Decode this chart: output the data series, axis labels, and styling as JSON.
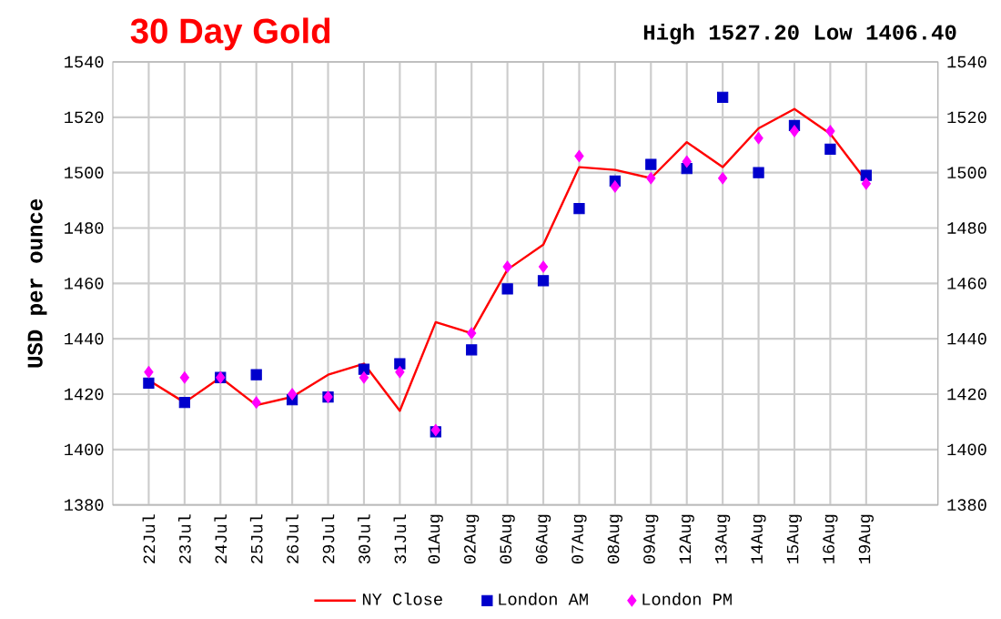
{
  "chart_data": {
    "type": "line",
    "title": "30 Day Gold",
    "subtitle": "High 1527.20 Low 1406.40",
    "ylabel": "USD per ounce",
    "categories": [
      "22Jul",
      "23Jul",
      "24Jul",
      "25Jul",
      "26Jul",
      "29Jul",
      "30Jul",
      "31Jul",
      "01Aug",
      "02Aug",
      "05Aug",
      "06Aug",
      "07Aug",
      "08Aug",
      "09Aug",
      "12Aug",
      "13Aug",
      "14Aug",
      "15Aug",
      "16Aug",
      "19Aug"
    ],
    "series": [
      {
        "name": "NY Close",
        "marker": "none",
        "color": "#ff0000",
        "values": [
          1425,
          1417,
          1426,
          1416,
          1419,
          1427,
          1431,
          1414,
          1446,
          1442,
          1465,
          1474,
          1502,
          1501,
          1498,
          1511,
          1502,
          1516,
          1523,
          1514,
          1497
        ]
      },
      {
        "name": "London AM",
        "type": "scatter",
        "marker": "square",
        "color": "#0000cc",
        "values": [
          1424,
          1417,
          1426,
          1427,
          1418,
          1419,
          1429,
          1431,
          1406.4,
          1436,
          1458,
          1461,
          1487,
          1497,
          1503,
          1501.5,
          1527.2,
          1500,
          1517,
          1508.5,
          1499
        ]
      },
      {
        "name": "London PM",
        "type": "scatter",
        "marker": "diamond",
        "color": "#ff00ff",
        "values": [
          1428,
          1426,
          1426,
          1417,
          1420,
          1419,
          1426,
          1428,
          1407,
          1442,
          1466,
          1466,
          1506,
          1495,
          1498,
          1504,
          1498,
          1512.5,
          1515,
          1515,
          1496
        ]
      }
    ],
    "ylim": [
      1380,
      1540
    ],
    "yticks": [
      1380,
      1400,
      1420,
      1440,
      1460,
      1480,
      1500,
      1520,
      1540
    ],
    "y2lim": [
      1380,
      1540
    ],
    "y2ticks": [
      1380,
      1400,
      1420,
      1440,
      1460,
      1480,
      1500,
      1520,
      1540
    ],
    "grid": true,
    "legend": "bottom"
  }
}
